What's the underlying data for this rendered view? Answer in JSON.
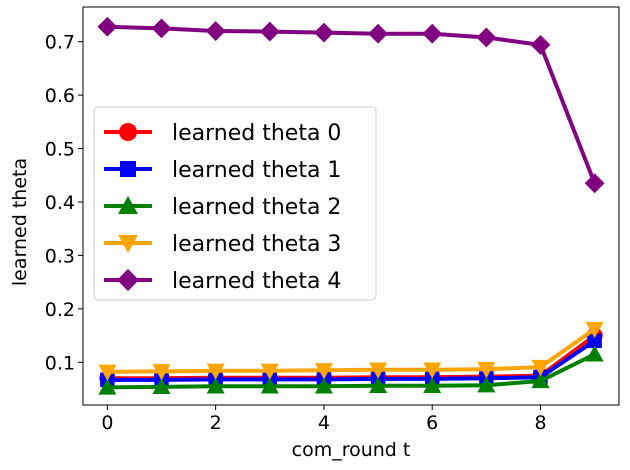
{
  "chart_data": {
    "type": "line",
    "title": "",
    "xlabel": "com_round t",
    "ylabel": "learned theta",
    "x": [
      0,
      1,
      2,
      3,
      4,
      5,
      6,
      7,
      8,
      9
    ],
    "xlim": [
      -0.45,
      9.45
    ],
    "ylim": [
      0.02,
      0.765
    ],
    "xticks": [
      0,
      2,
      4,
      6,
      8
    ],
    "yticks": [
      0.1,
      0.2,
      0.3,
      0.4,
      0.5,
      0.6,
      0.7
    ],
    "legend_position": "center-left",
    "grid": false,
    "series": [
      {
        "name": "learned theta 0",
        "color": "#ff0000",
        "marker": "circle",
        "values": [
          0.07,
          0.07,
          0.071,
          0.071,
          0.071,
          0.072,
          0.072,
          0.073,
          0.075,
          0.15
        ]
      },
      {
        "name": "learned theta 1",
        "color": "#0000ff",
        "marker": "square",
        "values": [
          0.067,
          0.067,
          0.068,
          0.068,
          0.068,
          0.069,
          0.069,
          0.07,
          0.072,
          0.14
        ]
      },
      {
        "name": "learned theta 2",
        "color": "#008000",
        "marker": "triangle-up",
        "values": [
          0.053,
          0.054,
          0.055,
          0.055,
          0.055,
          0.056,
          0.056,
          0.057,
          0.065,
          0.115
        ]
      },
      {
        "name": "learned theta 3",
        "color": "#ffa500",
        "marker": "triangle-down",
        "values": [
          0.082,
          0.083,
          0.084,
          0.084,
          0.085,
          0.086,
          0.086,
          0.087,
          0.091,
          0.162
        ]
      },
      {
        "name": "learned theta 4",
        "color": "#800080",
        "marker": "diamond",
        "values": [
          0.728,
          0.725,
          0.72,
          0.719,
          0.717,
          0.715,
          0.715,
          0.708,
          0.694,
          0.435
        ]
      }
    ]
  }
}
